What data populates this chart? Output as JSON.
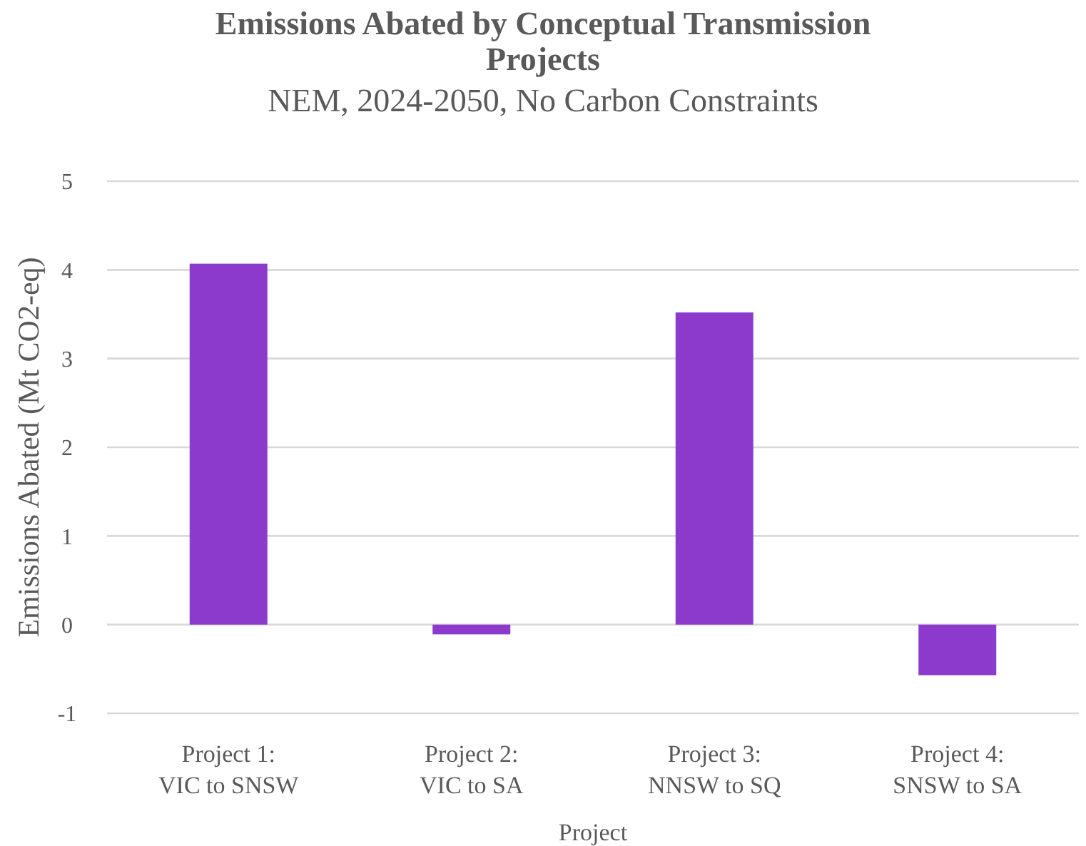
{
  "chart_data": {
    "type": "bar",
    "title": "Emissions Abated by Conceptual Transmission Projects",
    "subtitle": "NEM, 2024-2050, No Carbon Constraints",
    "xlabel": "Project",
    "ylabel": "Emissions Abated (Mt CO2-eq)",
    "categories": [
      "Project 1:\nVIC to SNSW",
      "Project 2:\nVIC to SA",
      "Project 3:\nNNSW to SQ",
      "Project 4:\nSNSW to SA"
    ],
    "values": [
      4.07,
      -0.11,
      3.52,
      -0.57
    ],
    "color": "#8b3acb",
    "ylim": [
      -1,
      5
    ],
    "yticks": [
      -1,
      0,
      1,
      2,
      3,
      4,
      5
    ],
    "grid": "y"
  }
}
